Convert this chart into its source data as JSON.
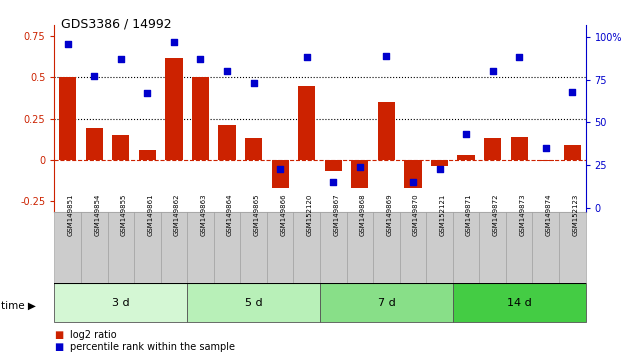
{
  "title": "GDS3386 / 14992",
  "samples": [
    "GSM149851",
    "GSM149854",
    "GSM149855",
    "GSM149861",
    "GSM149862",
    "GSM149863",
    "GSM149864",
    "GSM149865",
    "GSM149866",
    "GSM152120",
    "GSM149867",
    "GSM149868",
    "GSM149869",
    "GSM149870",
    "GSM152121",
    "GSM149871",
    "GSM149872",
    "GSM149873",
    "GSM149874",
    "GSM152123"
  ],
  "log2_ratio": [
    0.5,
    0.19,
    0.15,
    0.06,
    0.62,
    0.5,
    0.21,
    0.13,
    -0.17,
    0.45,
    -0.07,
    -0.17,
    0.35,
    -0.17,
    -0.04,
    0.03,
    0.13,
    0.14,
    -0.01,
    0.09
  ],
  "percentile": [
    96,
    77,
    87,
    67,
    97,
    87,
    80,
    73,
    23,
    88,
    15,
    24,
    89,
    15,
    23,
    43,
    80,
    88,
    35,
    68
  ],
  "groups": [
    {
      "label": "3 d",
      "start": 0,
      "end": 5,
      "color": "#d4f7d4"
    },
    {
      "label": "5 d",
      "start": 5,
      "end": 10,
      "color": "#b8f0b8"
    },
    {
      "label": "7 d",
      "start": 10,
      "end": 15,
      "color": "#88df88"
    },
    {
      "label": "14 d",
      "start": 15,
      "end": 20,
      "color": "#44cc44"
    }
  ],
  "bar_color": "#cc2200",
  "dot_color": "#0000cc",
  "ylim_left": [
    -0.32,
    0.82
  ],
  "ylim_right": [
    -2.5,
    107
  ],
  "yticks_left": [
    -0.25,
    0.0,
    0.25,
    0.5,
    0.75
  ],
  "yticks_right": [
    0,
    25,
    50,
    75,
    100
  ],
  "ytick_left_labels": [
    "-0.25",
    "0",
    "0.25",
    "0.5",
    "0.75"
  ],
  "ytick_right_labels": [
    "0",
    "25",
    "50",
    "75",
    "100%"
  ],
  "hlines": [
    0.0,
    0.25,
    0.5
  ],
  "hline_styles": [
    "dashed",
    "dotted",
    "dotted"
  ],
  "hline_colors": [
    "#cc2200",
    "#000000",
    "#000000"
  ],
  "bg_color": "#ffffff",
  "tick_box_color": "#cccccc",
  "tick_box_edge": "#999999"
}
